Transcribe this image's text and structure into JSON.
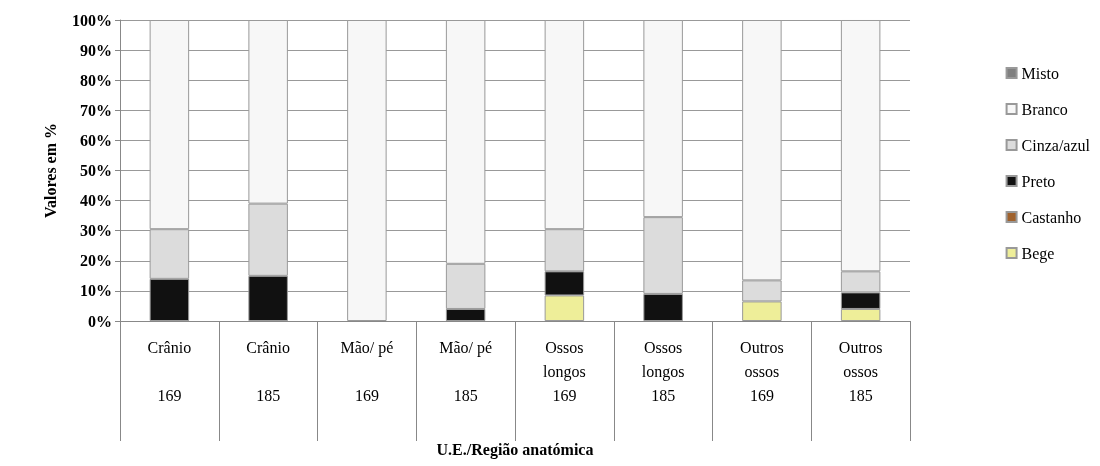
{
  "chart_data": {
    "type": "bar",
    "stacked": true,
    "xlabel": "U.E./Região anatómica",
    "ylabel": "Valores em %",
    "categories": [
      "Crânio\n\n169",
      "Crânio\n\n185",
      "Mão/ pé\n\n169",
      "Mão/ pé\n\n185",
      "Ossos\nlongos\n169",
      "Ossos\nlongos\n185",
      "Outros\nossos\n169",
      "Outros\nossos\n185"
    ],
    "series": [
      {
        "name": "Bege",
        "color": "#eeee99",
        "values": [
          0,
          0,
          0,
          0,
          8.5,
          0,
          6.5,
          4
        ]
      },
      {
        "name": "Castanho",
        "color": "#a0622d",
        "values": [
          0,
          0,
          0,
          0,
          0,
          0,
          0,
          0
        ]
      },
      {
        "name": "Preto",
        "color": "#111111",
        "values": [
          14,
          15,
          0,
          4,
          8,
          9,
          0,
          5.5
        ]
      },
      {
        "name": "Cinza/azul",
        "color": "#dcdcdc",
        "values": [
          16.5,
          24,
          0,
          15,
          14,
          25.5,
          7,
          7
        ]
      },
      {
        "name": "Branco",
        "color": "#f7f7f7",
        "values": [
          69.5,
          61,
          100,
          81,
          69.5,
          65.5,
          86.5,
          83.5
        ]
      },
      {
        "name": "Misto",
        "color": "#808080",
        "values": [
          0,
          0,
          0,
          0,
          0,
          0,
          0,
          0
        ]
      }
    ],
    "ylim": [
      0,
      100
    ],
    "yticks": [
      {
        "value": 0,
        "label": "0%"
      },
      {
        "value": 10,
        "label": "10%"
      },
      {
        "value": 20,
        "label": "20%"
      },
      {
        "value": 30,
        "label": "30%"
      },
      {
        "value": 40,
        "label": "40%"
      },
      {
        "value": 50,
        "label": "50%"
      },
      {
        "value": 60,
        "label": "60%"
      },
      {
        "value": 70,
        "label": "70%"
      },
      {
        "value": 80,
        "label": "80%"
      },
      {
        "value": 90,
        "label": "90%"
      },
      {
        "value": 100,
        "label": "100%"
      }
    ],
    "grid": "y",
    "legend": "right"
  }
}
